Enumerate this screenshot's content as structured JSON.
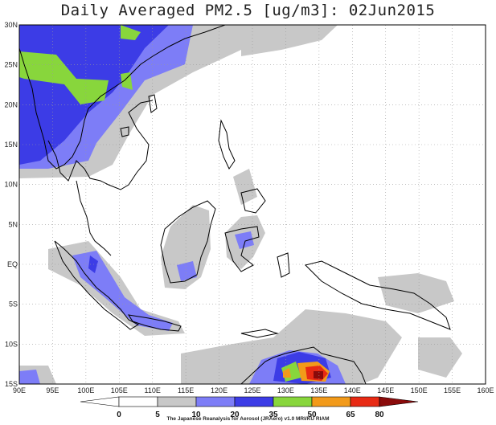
{
  "title": "Daily Averaged PM2.5 [ug/m3]: 02Jun2015",
  "credit": "The Japanese Reanalysis for Aerosol (JRAero) v1.0  MRI/KU RIAM",
  "colors": {
    "c0": "#ffffff",
    "c5": "#ffffff",
    "c10": "#c8c8c8",
    "c20": "#7d7df7",
    "c35": "#3c3ce6",
    "c50": "#88d63c",
    "c65": "#f29a1a",
    "c80": "#e82a14",
    "cmax": "#8a0b0b",
    "coast": "#000000",
    "grid": "#9a9a9a"
  },
  "map": {
    "lon_min": 90,
    "lon_max": 160,
    "lat_min": -15,
    "lat_max": 30,
    "lat_labels": [
      "30N",
      "25N",
      "20N",
      "15N",
      "10N",
      "5N",
      "EQ",
      "5S",
      "10S",
      "15S"
    ],
    "lon_labels": [
      "90E",
      "95E",
      "100E",
      "105E",
      "110E",
      "115E",
      "120E",
      "125E",
      "130E",
      "135E",
      "140E",
      "145E",
      "150E",
      "155E",
      "160E"
    ]
  },
  "colorbar": {
    "labels": [
      "0",
      "5",
      "10",
      "20",
      "35",
      "50",
      "65",
      "80"
    ]
  }
}
